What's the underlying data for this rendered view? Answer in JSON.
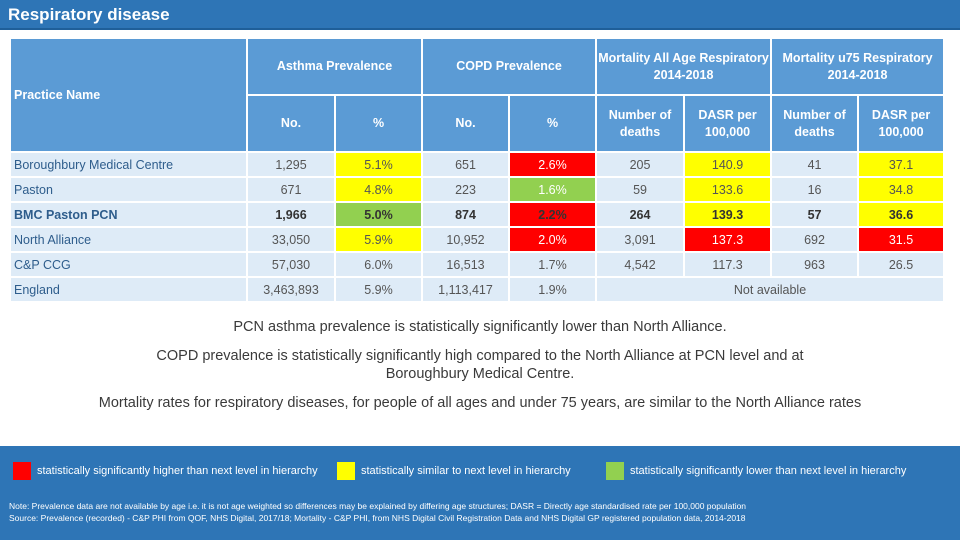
{
  "title": "Respiratory disease",
  "colors": {
    "header_bg": "#2e75b6",
    "table_header": "#5b9bd5",
    "row_bg": "#deebf7",
    "higher": "#ff0000",
    "similar": "#ffff00",
    "lower": "#92d050"
  },
  "table": {
    "practice_header": "Practice Name",
    "groups": {
      "asthma": "Asthma Prevalence",
      "copd": "COPD Prevalence",
      "mort_all": "Mortality All Age Respiratory  2014-2018",
      "mort_u75": "Mortality u75 Respiratory 2014-2018"
    },
    "subheaders": {
      "no": "No.",
      "pct": "%",
      "deaths": "Number of deaths",
      "dasr": "DASR per 100,000"
    },
    "rows": [
      {
        "name": "Boroughbury Medical Centre",
        "asthma_no": "1,295",
        "asthma_pct": "5.1%",
        "copd_no": "651",
        "copd_pct": "2.6%",
        "mort_no": "205",
        "mort_dasr": "140.9",
        "u75_no": "41",
        "u75_dasr": "37.1"
      },
      {
        "name": "Paston",
        "asthma_no": "671",
        "asthma_pct": "4.8%",
        "copd_no": "223",
        "copd_pct": "1.6%",
        "mort_no": "59",
        "mort_dasr": "133.6",
        "u75_no": "16",
        "u75_dasr": "34.8"
      },
      {
        "name": "BMC Paston PCN",
        "asthma_no": "1,966",
        "asthma_pct": "5.0%",
        "copd_no": "874",
        "copd_pct": "2.2%",
        "mort_no": "264",
        "mort_dasr": "139.3",
        "u75_no": "57",
        "u75_dasr": "36.6"
      },
      {
        "name": "North Alliance",
        "asthma_no": "33,050",
        "asthma_pct": "5.9%",
        "copd_no": "10,952",
        "copd_pct": "2.0%",
        "mort_no": "3,091",
        "mort_dasr": "137.3",
        "u75_no": "692",
        "u75_dasr": "31.5"
      },
      {
        "name": "C&P CCG",
        "asthma_no": "57,030",
        "asthma_pct": "6.0%",
        "copd_no": "16,513",
        "copd_pct": "1.7%",
        "mort_no": "4,542",
        "mort_dasr": "117.3",
        "u75_no": "963",
        "u75_dasr": "26.5"
      },
      {
        "name": "England",
        "asthma_no": "3,463,893",
        "asthma_pct": "5.9%",
        "copd_no": "1,113,417",
        "copd_pct": "1.9%",
        "not_available": "Not available"
      }
    ]
  },
  "findings": [
    "PCN asthma prevalence is statistically significantly lower than North Alliance.",
    "COPD prevalence is statistically significantly high compared to the North Alliance at PCN level and at Boroughbury Medical Centre.",
    "Mortality rates for respiratory diseases, for people of all ages and under 75 years, are similar to the North Alliance rates"
  ],
  "legend": [
    {
      "label": "statistically significantly higher than next level in hierarchy",
      "color": "#ff0000"
    },
    {
      "label": "statistically similar to next level in hierarchy",
      "color": "#ffff00"
    },
    {
      "label": "statistically significantly lower than next level in hierarchy",
      "color": "#92d050"
    }
  ],
  "note": "Note: Prevalence data are not available by age i.e. it is not age weighted so differences may be explained by differing age structures; DASR = Directly age standardised rate per 100,000 population",
  "source": "Source: Prevalence (recorded) - C&P PHI from QOF, NHS Digital, 2017/18;  Mortality - C&P PHI, from NHS Digital Civil Registration Data and NHS Digital GP registered population data, 2014-2018"
}
